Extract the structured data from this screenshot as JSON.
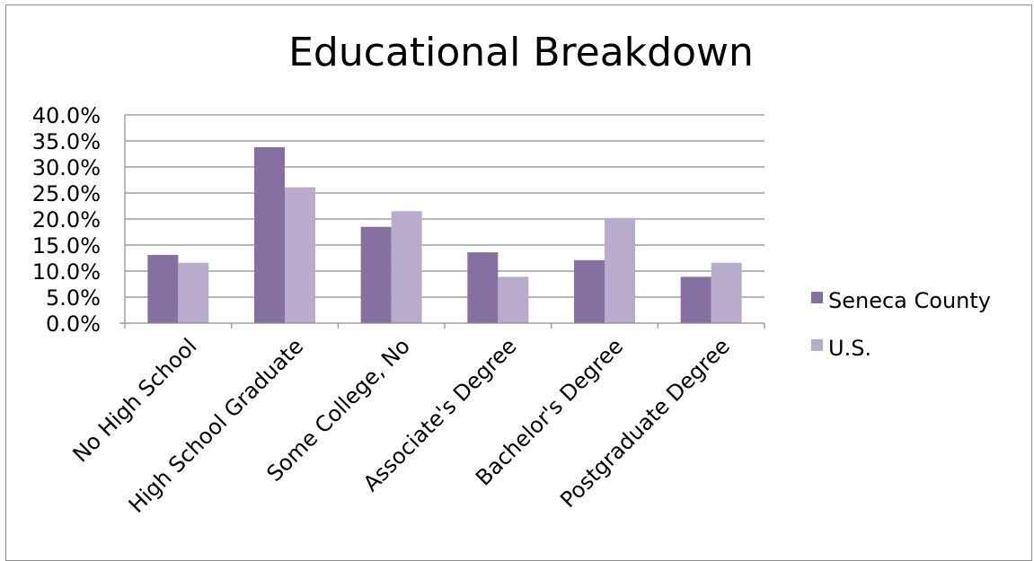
{
  "chart_data": {
    "type": "bar",
    "title": "Educational Breakdown",
    "xlabel": "",
    "ylabel": "",
    "categories": [
      "No High School",
      "High School Graduate",
      "Some College, No",
      "Associate's Degree",
      "Bachelor's Degree",
      "Postgraduate Degree"
    ],
    "series": [
      {
        "name": "Seneca County",
        "values": [
          13.1,
          33.8,
          18.5,
          13.6,
          12.1,
          8.9
        ],
        "color": "#8670a2"
      },
      {
        "name": "U.S.",
        "values": [
          11.6,
          26.1,
          21.5,
          8.9,
          20.2,
          11.6
        ],
        "color": "#b8abcc"
      }
    ],
    "ylim": [
      0,
      40
    ],
    "yticks": [
      "0.0%",
      "5.0%",
      "10.0%",
      "15.0%",
      "20.0%",
      "25.0%",
      "30.0%",
      "35.0%",
      "40.0%"
    ],
    "grid": true,
    "legend_position": "right",
    "gridline_color": "#8c8c8c"
  }
}
